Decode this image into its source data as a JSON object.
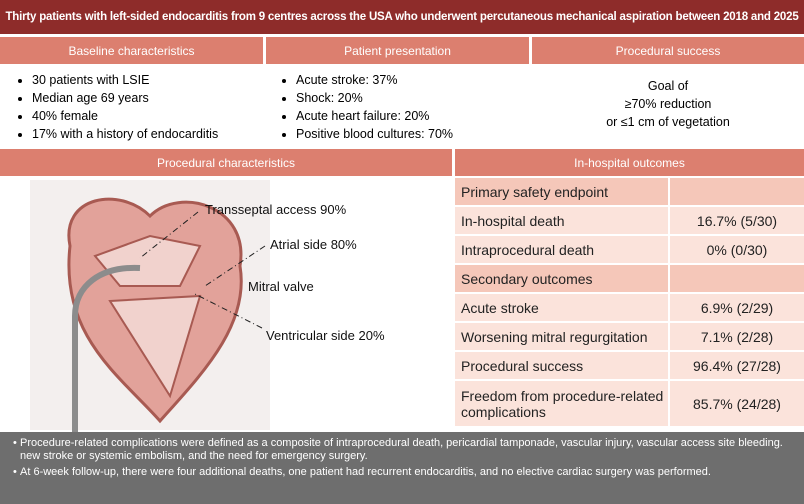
{
  "title": "Thirty patients with left-sided endocarditis from 9 centres across the USA who underwent percutaneous mechanical aspiration between 2018 and  2025",
  "baseline": {
    "header": "Baseline characteristics",
    "items": [
      "30 patients with LSIE",
      "Median age 69 years",
      "40% female",
      "17% with a history of endocarditis"
    ]
  },
  "presentation": {
    "header": "Patient presentation",
    "items": [
      "Acute stroke: 37%",
      "Shock: 20%",
      "Acute heart failure: 20%",
      "Positive blood cultures: 70%"
    ]
  },
  "success": {
    "header": "Procedural success",
    "lines": [
      "Goal of",
      "≥70% reduction",
      "or ≤1 cm of vegetation"
    ]
  },
  "procedural": {
    "header": "Procedural characteristics",
    "labels": [
      "Transseptal access 90%",
      "Atrial side 80%",
      "Mitral valve",
      "Ventricular side 20%"
    ]
  },
  "outcomes": {
    "header": "In-hospital outcomes",
    "rows": [
      {
        "label": "Primary safety endpoint"
      },
      {
        "label": "In-hospital death",
        "value": "16.7% (5/30)"
      },
      {
        "label": "Intraprocedural death",
        "value": "0% (0/30)"
      },
      {
        "label": "Secondary outcomes"
      },
      {
        "label": "Acute stroke",
        "value": "6.9% (2/29)"
      },
      {
        "label": "Worsening mitral regurgitation",
        "value": "7.1% (2/28)"
      },
      {
        "label": "Procedural success",
        "value": "96.4% (27/28)"
      },
      {
        "label": "Freedom from procedure-related complications",
        "value": "85.7% (24/28)"
      }
    ]
  },
  "notes": [
    "Procedure-related complications were defined as a composite of intraprocedural death, pericardial tamponade, vascular injury, vascular access site bleeding. new stroke or systemic embolism, and the need for emergency surgery.",
    "At 6-week follow-up, there were four additional deaths, one patient had recurrent endocarditis, and no elective cardiac surgery was performed."
  ]
}
